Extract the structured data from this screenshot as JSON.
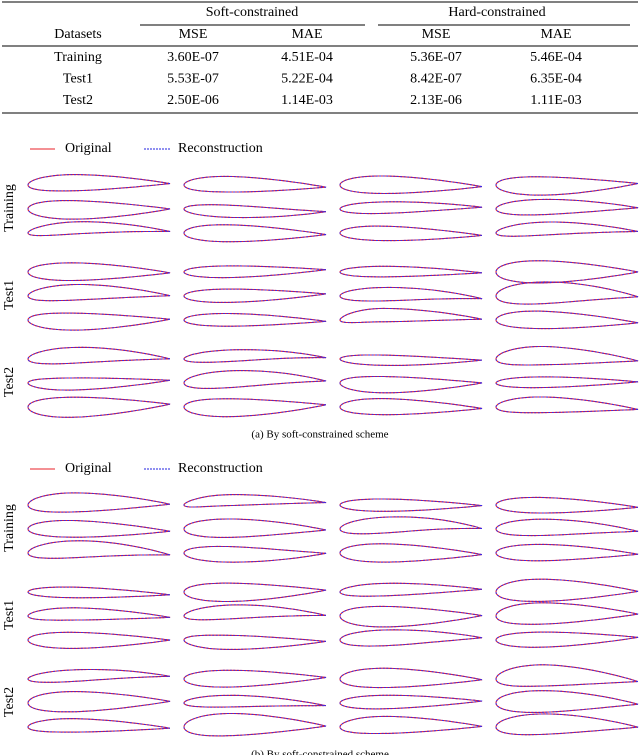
{
  "table": {
    "group_headers": [
      "Soft-constrained",
      "Hard-constrained"
    ],
    "columns": [
      "Datasets",
      "MSE",
      "MAE",
      "MSE",
      "MAE"
    ],
    "rows": [
      [
        "Training",
        "3.60E-07",
        "4.51E-04",
        "5.36E-07",
        "5.46E-04"
      ],
      [
        "Test1",
        "5.53E-07",
        "5.22E-04",
        "8.42E-07",
        "6.35E-04"
      ],
      [
        "Test2",
        "2.50E-06",
        "1.14E-03",
        "2.13E-06",
        "1.11E-03"
      ]
    ]
  },
  "panels": [
    {
      "legend": [
        "Original",
        "Reconstruction"
      ],
      "row_labels": [
        "Training",
        "Test1",
        "Test2"
      ],
      "caption": "(a)  By soft-constrained scheme"
    },
    {
      "legend": [
        "Original",
        "Reconstruction"
      ],
      "row_labels": [
        "Training",
        "Test1",
        "Test2"
      ],
      "caption": "(b)  By soft-constrained scheme"
    }
  ]
}
